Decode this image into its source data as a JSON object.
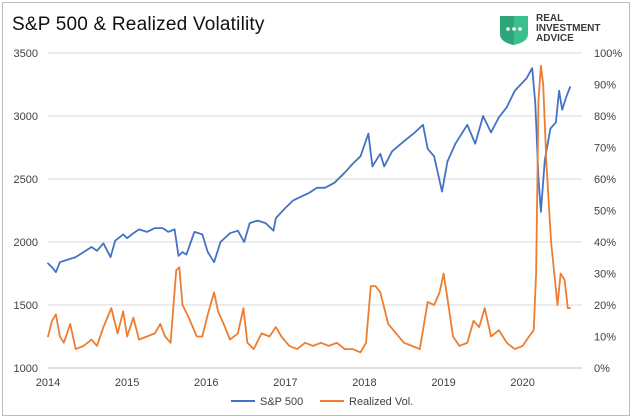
{
  "logo": {
    "lines": [
      "REAL",
      "INVESTMENT",
      "ADVICE"
    ],
    "accent_color": "#3cbf8f"
  },
  "chart_data": {
    "type": "line",
    "title": "S&P 500 & Realized Volatility",
    "x_ticks": [
      "2014",
      "2015",
      "2016",
      "2017",
      "2018",
      "2019",
      "2020"
    ],
    "xlim": [
      2014.0,
      2020.75
    ],
    "y_left": {
      "ylim": [
        1000,
        3500
      ],
      "ticks": [
        1000,
        1500,
        2000,
        2500,
        3000,
        3500
      ]
    },
    "y_right": {
      "ylim": [
        0,
        100
      ],
      "ticks": [
        0,
        10,
        20,
        30,
        40,
        50,
        60,
        70,
        80,
        90,
        100
      ],
      "tick_labels": [
        "0%",
        "10%",
        "20%",
        "30%",
        "40%",
        "50%",
        "60%",
        "70%",
        "80%",
        "90%",
        "100%"
      ]
    },
    "grid": "horizontal",
    "legend_position": "bottom",
    "series": [
      {
        "name": "S&P 500",
        "axis": "left",
        "color": "#4472c4",
        "points": [
          [
            2014.0,
            1830
          ],
          [
            2014.05,
            1800
          ],
          [
            2014.1,
            1760
          ],
          [
            2014.15,
            1840
          ],
          [
            2014.25,
            1860
          ],
          [
            2014.35,
            1880
          ],
          [
            2014.45,
            1920
          ],
          [
            2014.55,
            1960
          ],
          [
            2014.62,
            1930
          ],
          [
            2014.7,
            1990
          ],
          [
            2014.79,
            1880
          ],
          [
            2014.85,
            2010
          ],
          [
            2014.95,
            2060
          ],
          [
            2015.0,
            2030
          ],
          [
            2015.08,
            2070
          ],
          [
            2015.15,
            2100
          ],
          [
            2015.25,
            2080
          ],
          [
            2015.35,
            2110
          ],
          [
            2015.45,
            2110
          ],
          [
            2015.52,
            2080
          ],
          [
            2015.6,
            2100
          ],
          [
            2015.65,
            1890
          ],
          [
            2015.7,
            1920
          ],
          [
            2015.75,
            1900
          ],
          [
            2015.85,
            2080
          ],
          [
            2015.95,
            2060
          ],
          [
            2016.02,
            1920
          ],
          [
            2016.1,
            1840
          ],
          [
            2016.18,
            2000
          ],
          [
            2016.3,
            2070
          ],
          [
            2016.4,
            2090
          ],
          [
            2016.48,
            2000
          ],
          [
            2016.55,
            2150
          ],
          [
            2016.65,
            2170
          ],
          [
            2016.75,
            2150
          ],
          [
            2016.85,
            2090
          ],
          [
            2016.88,
            2190
          ],
          [
            2017.0,
            2270
          ],
          [
            2017.1,
            2330
          ],
          [
            2017.2,
            2360
          ],
          [
            2017.3,
            2390
          ],
          [
            2017.4,
            2430
          ],
          [
            2017.5,
            2430
          ],
          [
            2017.62,
            2470
          ],
          [
            2017.75,
            2550
          ],
          [
            2017.85,
            2620
          ],
          [
            2017.95,
            2680
          ],
          [
            2018.05,
            2860
          ],
          [
            2018.1,
            2600
          ],
          [
            2018.2,
            2700
          ],
          [
            2018.25,
            2600
          ],
          [
            2018.35,
            2720
          ],
          [
            2018.5,
            2800
          ],
          [
            2018.62,
            2860
          ],
          [
            2018.74,
            2930
          ],
          [
            2018.8,
            2740
          ],
          [
            2018.88,
            2680
          ],
          [
            2018.98,
            2400
          ],
          [
            2019.05,
            2640
          ],
          [
            2019.15,
            2780
          ],
          [
            2019.3,
            2930
          ],
          [
            2019.4,
            2780
          ],
          [
            2019.5,
            3000
          ],
          [
            2019.6,
            2870
          ],
          [
            2019.7,
            2990
          ],
          [
            2019.8,
            3070
          ],
          [
            2019.9,
            3200
          ],
          [
            2020.05,
            3300
          ],
          [
            2020.12,
            3380
          ],
          [
            2020.16,
            3100
          ],
          [
            2020.2,
            2500
          ],
          [
            2020.23,
            2240
          ],
          [
            2020.28,
            2650
          ],
          [
            2020.35,
            2900
          ],
          [
            2020.42,
            2950
          ],
          [
            2020.46,
            3200
          ],
          [
            2020.5,
            3050
          ],
          [
            2020.55,
            3150
          ],
          [
            2020.6,
            3230
          ]
        ]
      },
      {
        "name": "Realized Vol.",
        "axis": "right",
        "color": "#ed7d31",
        "points": [
          [
            2014.0,
            10
          ],
          [
            2014.05,
            15
          ],
          [
            2014.1,
            17
          ],
          [
            2014.15,
            10
          ],
          [
            2014.2,
            8
          ],
          [
            2014.28,
            14
          ],
          [
            2014.35,
            6
          ],
          [
            2014.45,
            7
          ],
          [
            2014.55,
            9
          ],
          [
            2014.62,
            7
          ],
          [
            2014.7,
            13
          ],
          [
            2014.8,
            19
          ],
          [
            2014.88,
            11
          ],
          [
            2014.95,
            18
          ],
          [
            2015.0,
            10
          ],
          [
            2015.08,
            16
          ],
          [
            2015.15,
            9
          ],
          [
            2015.25,
            10
          ],
          [
            2015.35,
            11
          ],
          [
            2015.42,
            14
          ],
          [
            2015.48,
            10
          ],
          [
            2015.55,
            8
          ],
          [
            2015.62,
            31
          ],
          [
            2015.66,
            32
          ],
          [
            2015.7,
            20
          ],
          [
            2015.78,
            16
          ],
          [
            2015.88,
            10
          ],
          [
            2015.95,
            10
          ],
          [
            2016.02,
            17
          ],
          [
            2016.1,
            24
          ],
          [
            2016.15,
            18
          ],
          [
            2016.22,
            14
          ],
          [
            2016.3,
            9
          ],
          [
            2016.4,
            11
          ],
          [
            2016.47,
            19
          ],
          [
            2016.52,
            8
          ],
          [
            2016.6,
            6
          ],
          [
            2016.7,
            11
          ],
          [
            2016.8,
            10
          ],
          [
            2016.88,
            13
          ],
          [
            2016.95,
            10
          ],
          [
            2017.05,
            7
          ],
          [
            2017.15,
            6
          ],
          [
            2017.25,
            8
          ],
          [
            2017.35,
            7
          ],
          [
            2017.45,
            8
          ],
          [
            2017.55,
            7
          ],
          [
            2017.65,
            8
          ],
          [
            2017.75,
            6
          ],
          [
            2017.85,
            6
          ],
          [
            2017.95,
            5
          ],
          [
            2018.02,
            8
          ],
          [
            2018.08,
            26
          ],
          [
            2018.14,
            26
          ],
          [
            2018.2,
            24
          ],
          [
            2018.3,
            14
          ],
          [
            2018.4,
            11
          ],
          [
            2018.5,
            8
          ],
          [
            2018.6,
            7
          ],
          [
            2018.7,
            6
          ],
          [
            2018.8,
            21
          ],
          [
            2018.88,
            20
          ],
          [
            2018.95,
            24
          ],
          [
            2019.0,
            30
          ],
          [
            2019.05,
            22
          ],
          [
            2019.12,
            10
          ],
          [
            2019.2,
            7
          ],
          [
            2019.3,
            8
          ],
          [
            2019.38,
            15
          ],
          [
            2019.45,
            13
          ],
          [
            2019.52,
            19
          ],
          [
            2019.6,
            10
          ],
          [
            2019.7,
            12
          ],
          [
            2019.8,
            8
          ],
          [
            2019.9,
            6
          ],
          [
            2020.0,
            7
          ],
          [
            2020.08,
            10
          ],
          [
            2020.14,
            12
          ],
          [
            2020.17,
            30
          ],
          [
            2020.2,
            85
          ],
          [
            2020.23,
            96
          ],
          [
            2020.26,
            90
          ],
          [
            2020.3,
            65
          ],
          [
            2020.36,
            40
          ],
          [
            2020.4,
            30
          ],
          [
            2020.44,
            20
          ],
          [
            2020.48,
            30
          ],
          [
            2020.53,
            28
          ],
          [
            2020.57,
            19
          ],
          [
            2020.6,
            19
          ]
        ]
      }
    ]
  }
}
